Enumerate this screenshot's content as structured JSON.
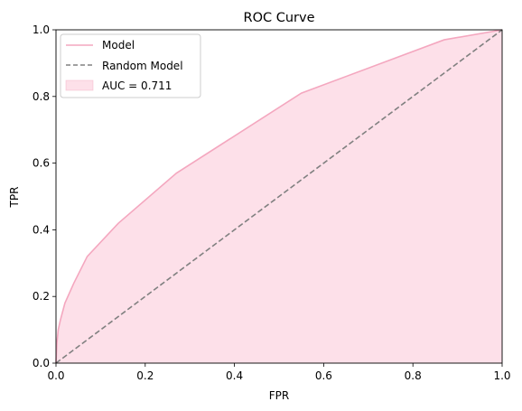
{
  "chart_data": {
    "type": "area",
    "title": "ROC Curve",
    "xlabel": "FPR",
    "ylabel": "TPR",
    "xlim": [
      0,
      1
    ],
    "ylim": [
      0,
      1
    ],
    "grid": false,
    "legend_position": "top-left",
    "x_ticks": [
      "0.0",
      "0.2",
      "0.4",
      "0.6",
      "0.8",
      "1.0"
    ],
    "y_ticks": [
      "0.0",
      "0.2",
      "0.4",
      "0.6",
      "0.8",
      "1.0"
    ],
    "series": [
      {
        "name": "Model",
        "style": "solid",
        "color": "#f4a7bf",
        "x": [
          0.0,
          0.002,
          0.005,
          0.01,
          0.02,
          0.04,
          0.07,
          0.14,
          0.27,
          0.55,
          0.87,
          1.0
        ],
        "y": [
          0.0,
          0.06,
          0.1,
          0.13,
          0.18,
          0.24,
          0.32,
          0.42,
          0.57,
          0.81,
          0.97,
          1.0
        ]
      },
      {
        "name": "Random Model",
        "style": "dashed",
        "color": "#808080",
        "x": [
          0,
          1
        ],
        "y": [
          0,
          1
        ]
      }
    ],
    "area": {
      "label": "AUC = 0.711",
      "color": "#fde0e9"
    }
  }
}
